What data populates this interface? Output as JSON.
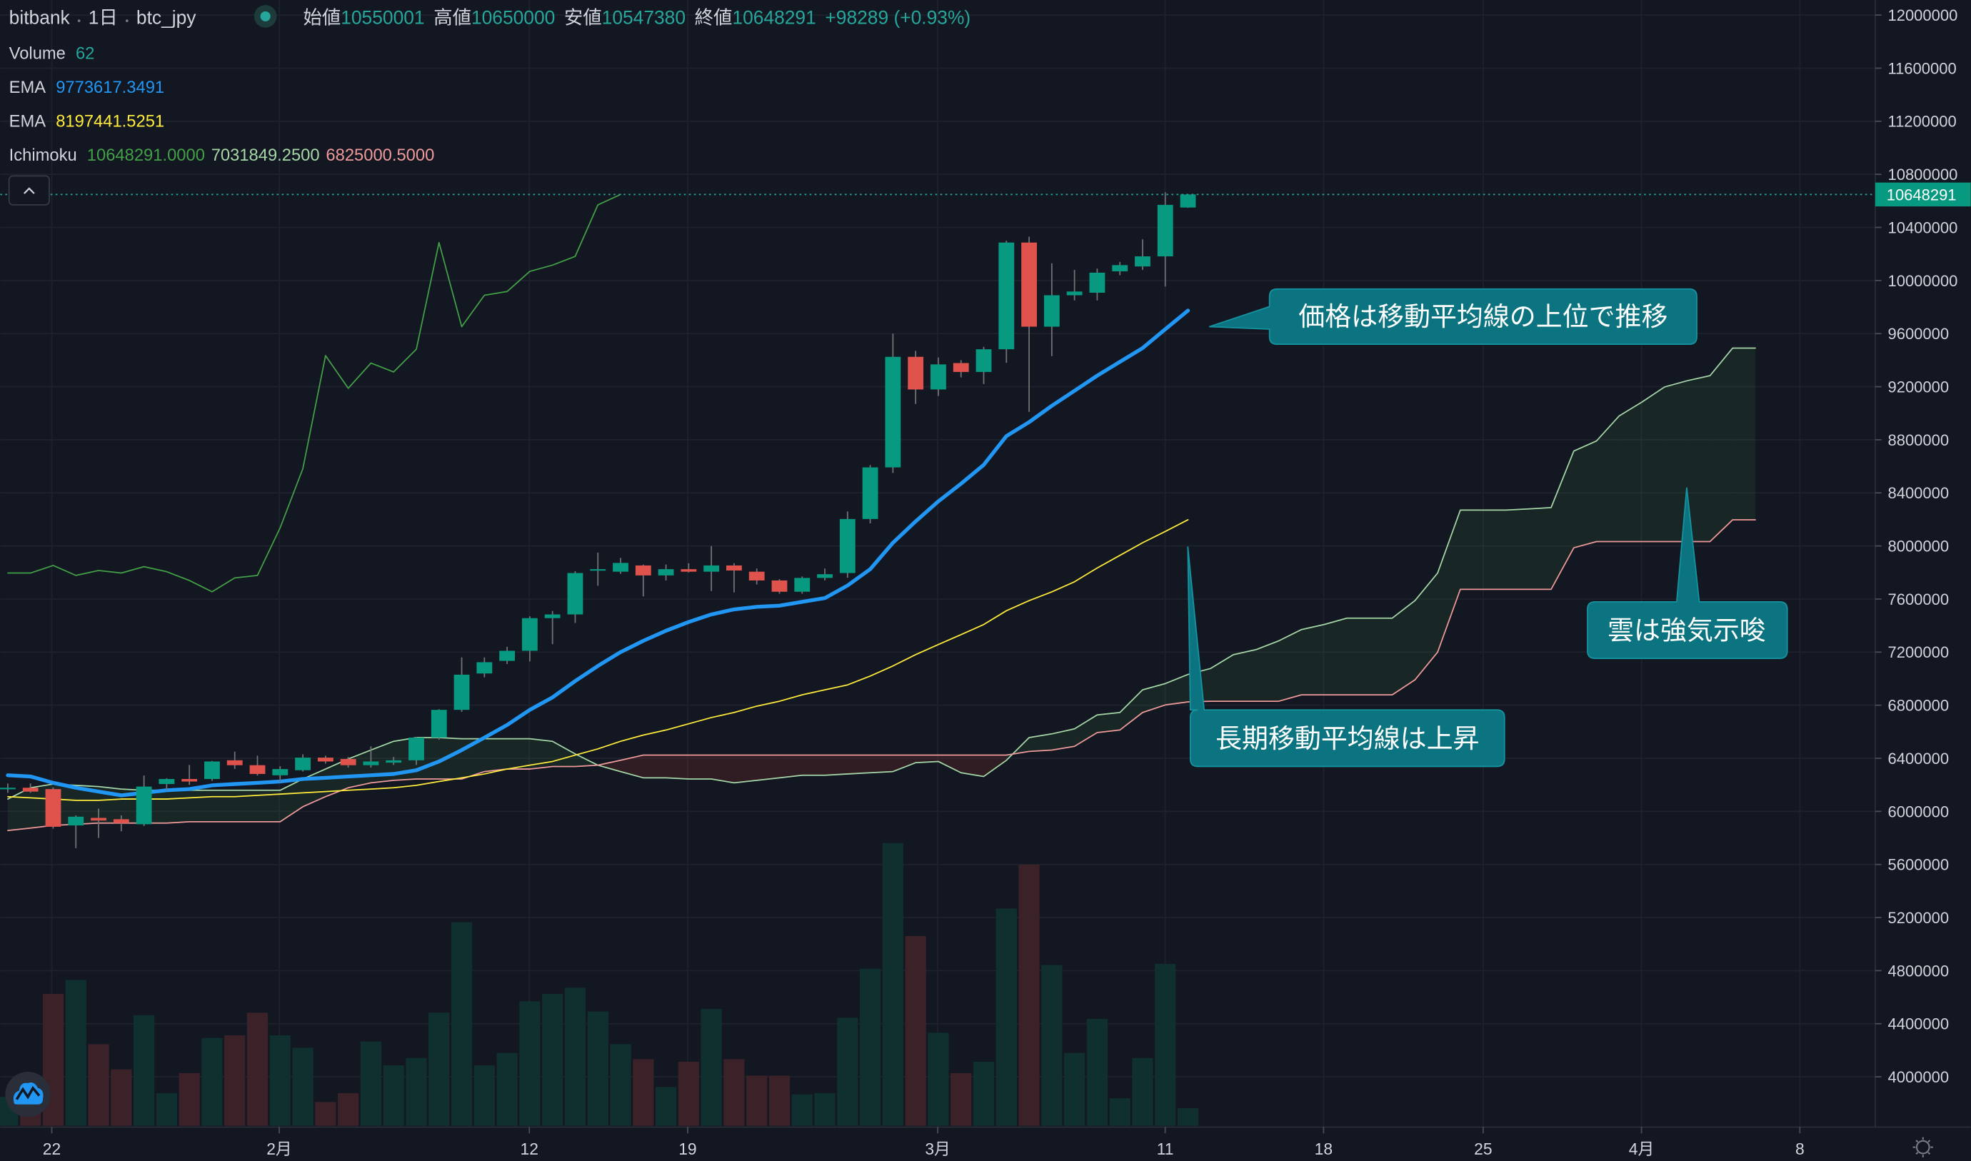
{
  "header": {
    "exchange": "bitbank",
    "interval": "1日",
    "symbol": "btc_jpy",
    "open_label": "始値",
    "open": "10550001",
    "high_label": "高値",
    "high": "10650000",
    "low_label": "安値",
    "low": "10547380",
    "close_label": "終値",
    "close": "10648291",
    "change": "+98289 (+0.93%)"
  },
  "legend": {
    "volume_label": "Volume",
    "volume_value": "62",
    "ema1_label": "EMA",
    "ema1_value": "9773617.3491",
    "ema2_label": "EMA",
    "ema2_value": "8197441.5251",
    "ichimoku_label": "Ichimoku",
    "ichimoku_values": [
      "10648291.0000",
      "7031849.2500",
      "6825000.5000"
    ]
  },
  "price_axis": {
    "ticks": [
      "12000000",
      "11600000",
      "11200000",
      "10800000",
      "10400000",
      "10000000",
      "9600000",
      "9200000",
      "8800000",
      "8400000",
      "8000000",
      "7600000",
      "7200000",
      "6800000",
      "6400000",
      "6000000",
      "5600000",
      "5200000",
      "4800000",
      "4400000",
      "4000000"
    ],
    "last_price": "10648291"
  },
  "time_axis": {
    "labels": [
      "22",
      "2月",
      "12",
      "19",
      "3月",
      "11",
      "18",
      "25",
      "4月",
      "8"
    ]
  },
  "annotations": [
    {
      "text": "価格は移動平均線の上位で推移"
    },
    {
      "text": "雲は強気示唆"
    },
    {
      "text": "長期移動平均線は上昇"
    }
  ],
  "colors": {
    "background": "#131722",
    "up": "#26a69a",
    "down": "#ef5350",
    "ema_fast": "#2196f3",
    "ema_slow": "#ffeb3b",
    "chikou": "#43a047",
    "senkou_a": "#a5d6a7",
    "senkou_b": "#ef9a9a",
    "callout": "#0b7480"
  },
  "chart_data": {
    "type": "candlestick",
    "xlabel": "",
    "ylabel": "",
    "ylim": [
      4000000,
      12000000
    ],
    "candles_ohlc": [
      [
        6168000,
        6210000,
        6140000,
        6178000
      ],
      [
        6178000,
        6210000,
        6140000,
        6149000
      ],
      [
        6168000,
        6180000,
        5870000,
        5884000
      ],
      [
        5894000,
        5970000,
        5723000,
        5960000
      ],
      [
        5951000,
        6020000,
        5800000,
        5931000
      ],
      [
        5941000,
        5970000,
        5850000,
        5912000
      ],
      [
        5903000,
        6270000,
        5890000,
        6187000
      ],
      [
        6206000,
        6250000,
        6160000,
        6244000
      ],
      [
        6244000,
        6350000,
        6200000,
        6225000
      ],
      [
        6244000,
        6380000,
        6230000,
        6376000
      ],
      [
        6385000,
        6450000,
        6320000,
        6348000
      ],
      [
        6348000,
        6420000,
        6270000,
        6282000
      ],
      [
        6272000,
        6340000,
        6220000,
        6319000
      ],
      [
        6310000,
        6430000,
        6300000,
        6405000
      ],
      [
        6405000,
        6420000,
        6360000,
        6376000
      ],
      [
        6395000,
        6410000,
        6330000,
        6348000
      ],
      [
        6348000,
        6490000,
        6330000,
        6376000
      ],
      [
        6367000,
        6410000,
        6350000,
        6385000
      ],
      [
        6385000,
        6560000,
        6350000,
        6556000
      ],
      [
        6556000,
        6770000,
        6540000,
        6765000
      ],
      [
        6765000,
        7160000,
        6750000,
        7030000
      ],
      [
        7039000,
        7160000,
        7010000,
        7124000
      ],
      [
        7134000,
        7240000,
        7110000,
        7210000
      ],
      [
        7210000,
        7470000,
        7130000,
        7456000
      ],
      [
        7456000,
        7510000,
        7260000,
        7484000
      ],
      [
        7484000,
        7810000,
        7420000,
        7796000
      ],
      [
        7815000,
        7950000,
        7700000,
        7825000
      ],
      [
        7806000,
        7910000,
        7790000,
        7872000
      ],
      [
        7853000,
        7860000,
        7620000,
        7778000
      ],
      [
        7778000,
        7860000,
        7740000,
        7825000
      ],
      [
        7825000,
        7870000,
        7800000,
        7806000
      ],
      [
        7806000,
        8000000,
        7660000,
        7853000
      ],
      [
        7853000,
        7870000,
        7650000,
        7815000
      ],
      [
        7806000,
        7830000,
        7710000,
        7740000
      ],
      [
        7740000,
        7750000,
        7640000,
        7655000
      ],
      [
        7655000,
        7770000,
        7640000,
        7759000
      ],
      [
        7759000,
        7830000,
        7740000,
        7787000
      ],
      [
        7796000,
        8260000,
        7760000,
        8203000
      ],
      [
        8203000,
        8610000,
        8170000,
        8592000
      ],
      [
        8592000,
        9600000,
        8550000,
        9425000
      ],
      [
        9425000,
        9470000,
        9070000,
        9179000
      ],
      [
        9179000,
        9420000,
        9130000,
        9368000
      ],
      [
        9378000,
        9400000,
        9270000,
        9311000
      ],
      [
        9311000,
        9500000,
        9220000,
        9482000
      ],
      [
        9482000,
        10300000,
        9380000,
        10286000
      ],
      [
        10286000,
        10330000,
        9010000,
        9652000
      ],
      [
        9652000,
        10130000,
        9430000,
        9889000
      ],
      [
        9889000,
        10080000,
        9850000,
        9917000
      ],
      [
        9908000,
        10090000,
        9850000,
        10059000
      ],
      [
        10069000,
        10140000,
        10040000,
        10116000
      ],
      [
        10106000,
        10310000,
        10080000,
        10182000
      ],
      [
        10182000,
        10665000,
        9955000,
        10570000
      ],
      [
        10550001,
        10650000,
        10547380,
        10648291
      ]
    ],
    "volume": [
      102,
      80,
      465,
      514,
      288,
      199,
      390,
      115,
      186,
      310,
      319,
      399,
      319,
      275,
      84,
      115,
      297,
      213,
      239,
      399,
      718,
      213,
      257,
      439,
      465,
      487,
      403,
      288,
      235,
      137,
      226,
      412,
      235,
      177,
      177,
      111,
      115,
      381,
      554,
      997,
      669,
      328,
      186,
      226,
      766,
      921,
      567,
      257,
      377,
      97,
      239,
      571,
      62
    ],
    "ema_fast": [
      6272000,
      6263000,
      6215000,
      6178000,
      6149000,
      6121000,
      6140000,
      6159000,
      6168000,
      6196000,
      6206000,
      6215000,
      6225000,
      6244000,
      6253000,
      6263000,
      6272000,
      6282000,
      6310000,
      6376000,
      6462000,
      6556000,
      6651000,
      6765000,
      6859000,
      6982000,
      7096000,
      7200000,
      7285000,
      7361000,
      7427000,
      7484000,
      7522000,
      7541000,
      7550000,
      7579000,
      7607000,
      7702000,
      7825000,
      8024000,
      8185000,
      8336000,
      8469000,
      8611000,
      8828000,
      8933000,
      9056000,
      9169000,
      9283000,
      9387000,
      9491000,
      9633000,
      9773617
    ],
    "ema_slow": [
      6111000,
      6102000,
      6093000,
      6083000,
      6083000,
      6093000,
      6093000,
      6093000,
      6102000,
      6111000,
      6111000,
      6121000,
      6130000,
      6140000,
      6149000,
      6159000,
      6168000,
      6178000,
      6196000,
      6225000,
      6253000,
      6282000,
      6319000,
      6348000,
      6376000,
      6424000,
      6471000,
      6528000,
      6575000,
      6613000,
      6660000,
      6707000,
      6745000,
      6793000,
      6830000,
      6878000,
      6916000,
      6953000,
      7020000,
      7096000,
      7181000,
      7257000,
      7332000,
      7408000,
      7512000,
      7588000,
      7654000,
      7730000,
      7834000,
      7929000,
      8024000,
      8109000,
      8197441
    ],
    "ichimoku": {
      "chikou": [
        7796000,
        7796000,
        7853000,
        7778000,
        7815000,
        7796000,
        7844000,
        7806000,
        7740000,
        7655000,
        7759000,
        7778000,
        8137000,
        8582000,
        9434000,
        9188000,
        9378000,
        9311000,
        9482000,
        10286000,
        9652000,
        9889000,
        9917000,
        10069000,
        10116000,
        10182000,
        10570000,
        10648291
      ],
      "senkou_a": [
        6093000,
        6178000,
        6206000,
        6196000,
        6187000,
        6168000,
        6159000,
        6159000,
        6159000,
        6159000,
        6159000,
        6159000,
        6159000,
        6244000,
        6319000,
        6395000,
        6462000,
        6528000,
        6556000,
        6556000,
        6547000,
        6547000,
        6547000,
        6547000,
        6528000,
        6433000,
        6348000,
        6300000,
        6253000,
        6253000,
        6244000,
        6244000,
        6215000,
        6234000,
        6253000,
        6272000,
        6272000,
        6282000,
        6291000,
        6300000,
        6367000,
        6376000,
        6291000,
        6263000,
        6385000,
        6556000,
        6584000,
        6622000,
        6727000,
        6745000,
        6916000,
        6963000,
        7031849,
        7077000,
        7181000,
        7219000,
        7285000,
        7370000,
        7408000,
        7456000,
        7456000,
        7456000,
        7588000,
        7796000,
        8270000,
        8270000,
        8270000,
        8279000,
        8289000,
        8715000,
        8791000,
        8980000,
        9084000,
        9198000,
        9245000,
        9283000,
        9491000,
        9491000
      ],
      "senkou_b": [
        5856000,
        5874000,
        5894000,
        5903000,
        5912000,
        5912000,
        5912000,
        5912000,
        5922000,
        5922000,
        5922000,
        5922000,
        5922000,
        6035000,
        6111000,
        6178000,
        6215000,
        6234000,
        6244000,
        6244000,
        6244000,
        6300000,
        6319000,
        6319000,
        6338000,
        6338000,
        6348000,
        6385000,
        6424000,
        6424000,
        6424000,
        6424000,
        6424000,
        6424000,
        6424000,
        6424000,
        6424000,
        6424000,
        6424000,
        6424000,
        6424000,
        6424000,
        6424000,
        6424000,
        6424000,
        6452000,
        6462000,
        6490000,
        6594000,
        6613000,
        6745000,
        6802000,
        6825000,
        6830000,
        6830000,
        6830000,
        6830000,
        6878000,
        6878000,
        6878000,
        6878000,
        6878000,
        6991000,
        7200000,
        7673000,
        7673000,
        7673000,
        7673000,
        7673000,
        7986000,
        8033000,
        8033000,
        8033000,
        8033000,
        8033000,
        8033000,
        8197000,
        8197000
      ]
    }
  }
}
